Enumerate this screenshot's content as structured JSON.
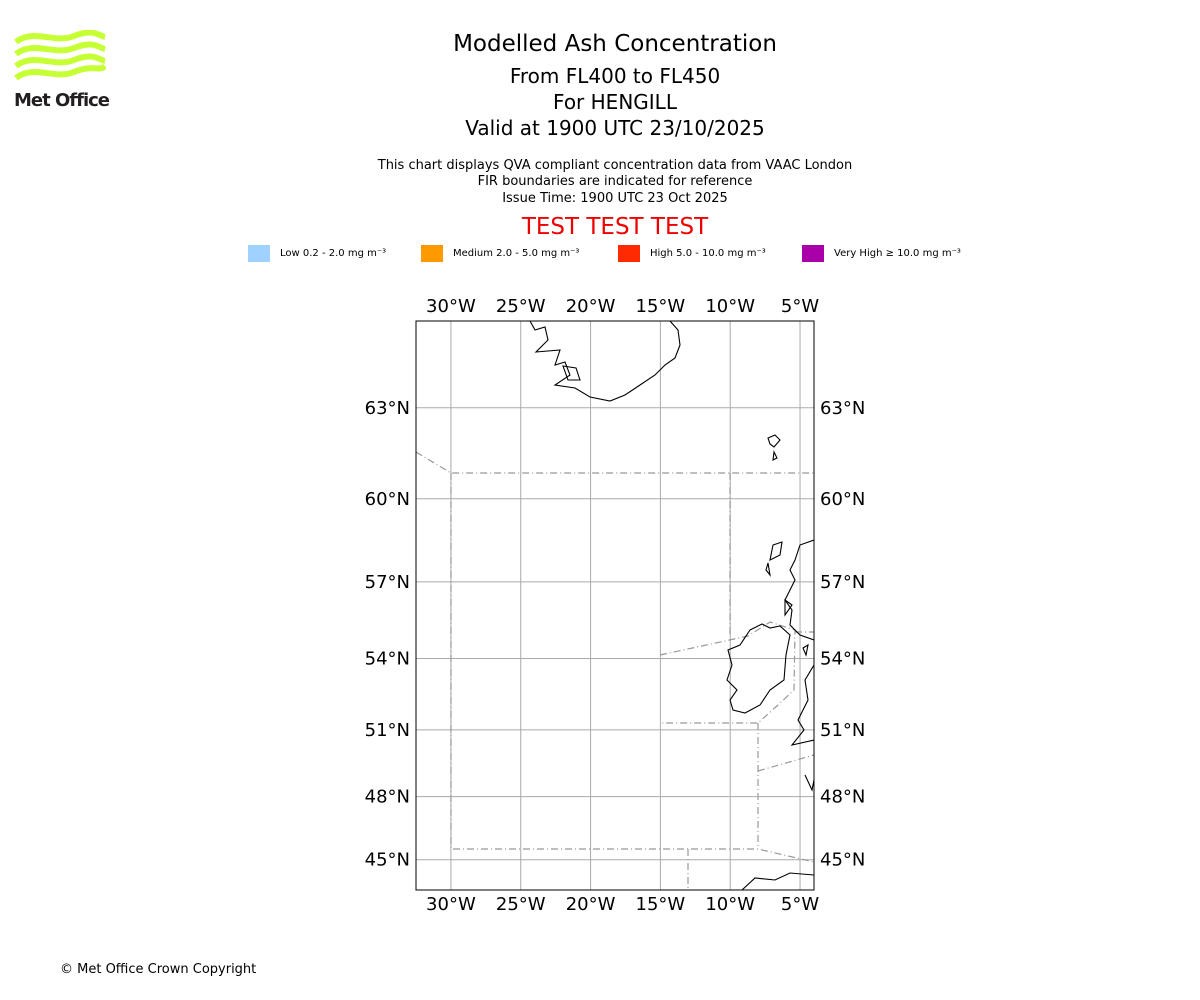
{
  "logo": {
    "text": "Met Office",
    "color": "#c6ff33"
  },
  "header": {
    "title": "Modelled Ash Concentration",
    "levels": "From FL400 to FL450",
    "location": "For HENGILL",
    "valid": "Valid at 1900 UTC 23/10/2025",
    "note1": "This chart displays QVA compliant concentration data from VAAC London",
    "note2": "FIR boundaries are indicated for reference",
    "issue": "Issue Time: 1900 UTC 23 Oct 2025",
    "test": "TEST TEST TEST"
  },
  "legend": [
    {
      "label": "Low 0.2 - 2.0 mg m⁻³",
      "color": "#a0d2ff"
    },
    {
      "label": "Medium 2.0 - 5.0 mg m⁻³",
      "color": "#ff9900"
    },
    {
      "label": "High 5.0 - 10.0 mg m⁻³",
      "color": "#ff2a00"
    },
    {
      "label": "Very High ≥ 10.0 mg m⁻³",
      "color": "#aa00aa"
    }
  ],
  "chart_data": {
    "type": "map",
    "projection": "mercator",
    "lon_range": [
      -32.5,
      -4.0
    ],
    "lat_range": [
      43.5,
      65.6
    ],
    "lon_ticks": [
      -30,
      -25,
      -20,
      -15,
      -10,
      -5
    ],
    "lon_labels": [
      "30°W",
      "25°W",
      "20°W",
      "15°W",
      "10°W",
      "5°W"
    ],
    "lat_ticks": [
      63,
      60,
      57,
      54,
      51,
      48,
      45
    ],
    "lat_labels": [
      "63°N",
      "60°N",
      "57°N",
      "54°N",
      "51°N",
      "48°N",
      "45°N"
    ],
    "grid": true,
    "ash_areas": []
  },
  "footer": {
    "copyright": "© Met Office Crown Copyright"
  }
}
